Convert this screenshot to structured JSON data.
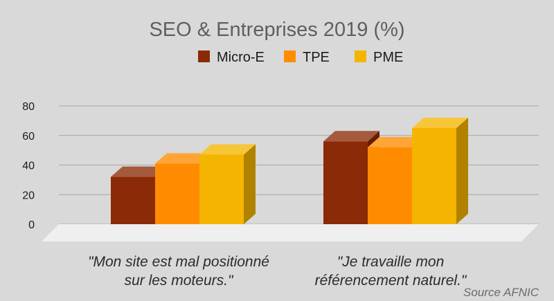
{
  "chart_data": {
    "type": "bar",
    "title": "SEO & Entreprises 2019 (%)",
    "categories": [
      [
        "\"Mon site est mal positionné",
        "sur les moteurs.\""
      ],
      [
        "\"Je travaille mon",
        "référencement naturel.\""
      ]
    ],
    "series": [
      {
        "name": "Micro-E",
        "values": [
          32,
          56
        ],
        "color": "#8b2a06"
      },
      {
        "name": "TPE",
        "values": [
          41,
          52
        ],
        "color": "#ff8c00"
      },
      {
        "name": "PME",
        "values": [
          47,
          65
        ],
        "color": "#f5b400"
      }
    ],
    "yticks": [
      0,
      20,
      40,
      60,
      80
    ],
    "ylim": [
      0,
      80
    ],
    "grid": true,
    "legend_position": "top",
    "source": "Source AFNIC",
    "colors": {
      "background": "#d9d9d9",
      "grid": "#a6a6a6",
      "floor": "#efefef",
      "text": "#1a1a1a",
      "title": "#5f5f5f",
      "source": "#6b6b6b"
    }
  }
}
